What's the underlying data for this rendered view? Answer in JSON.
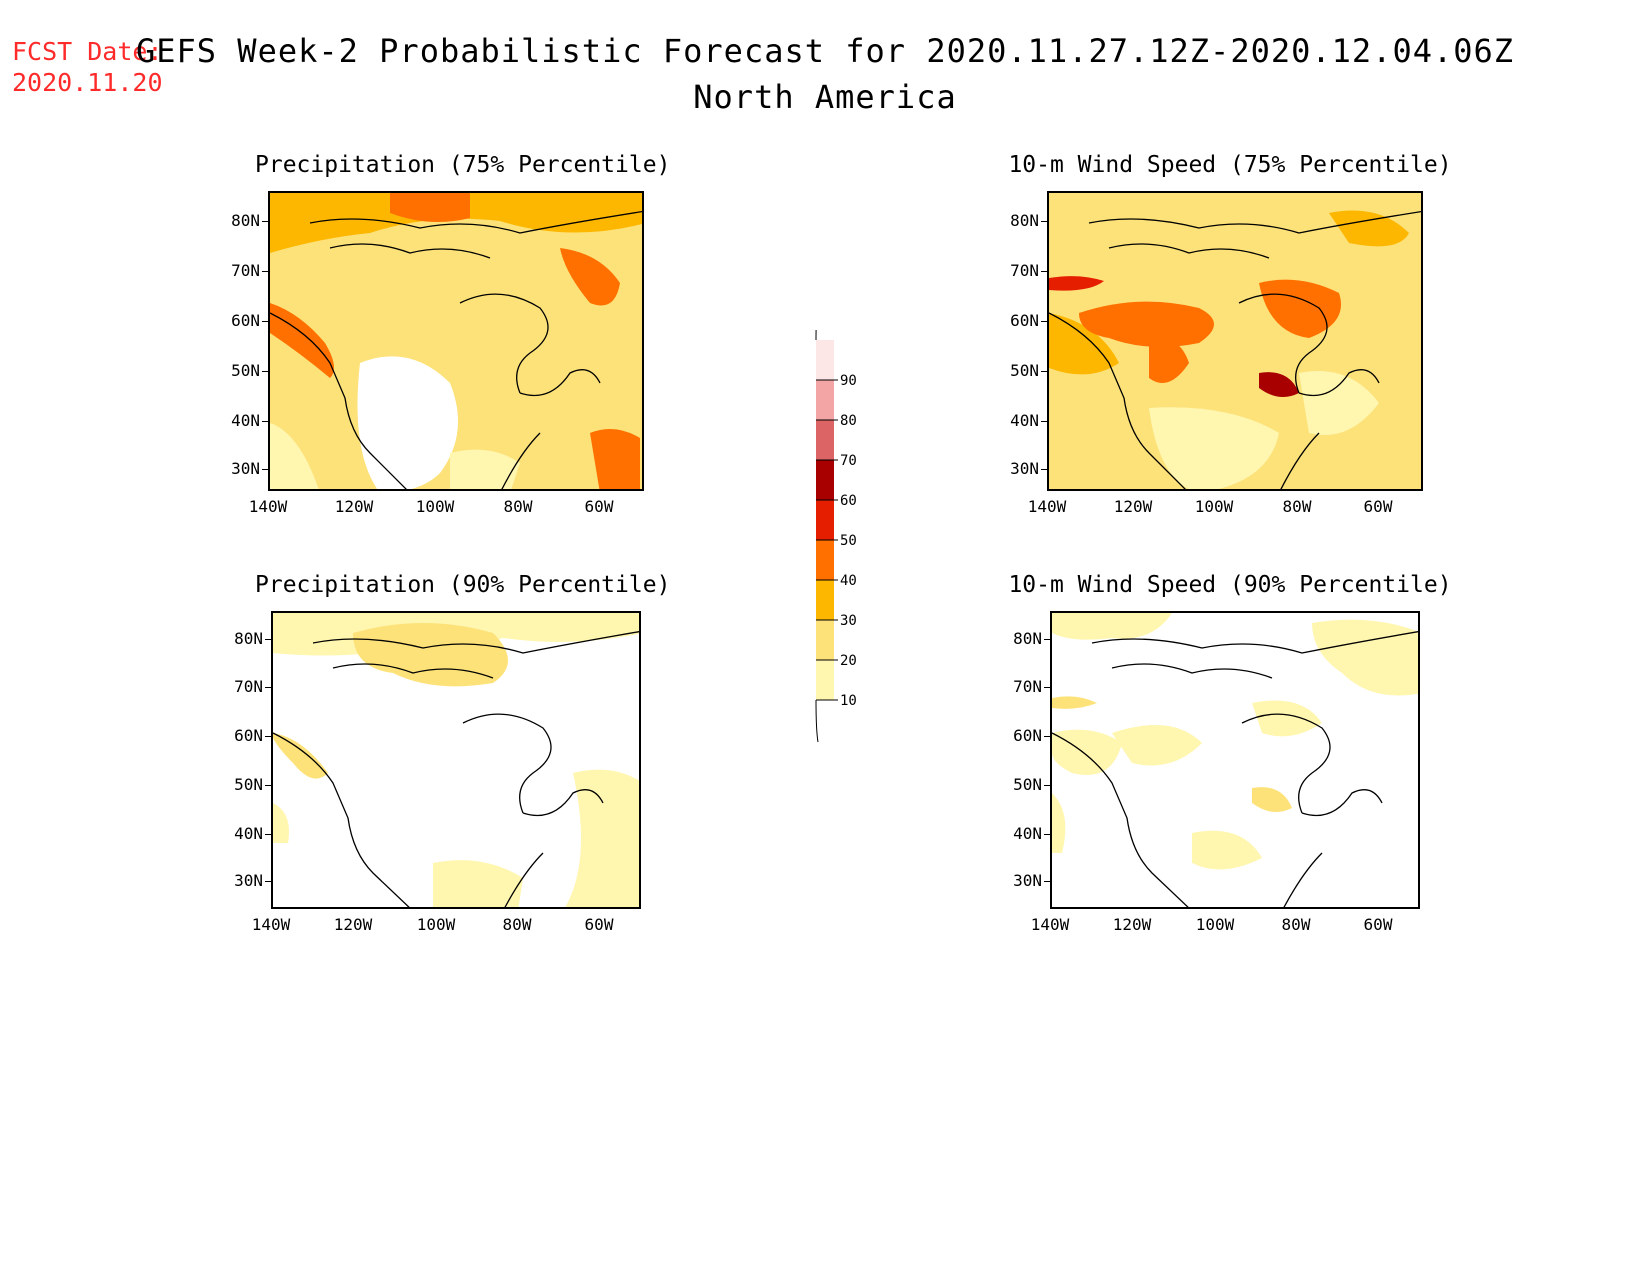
{
  "header": {
    "fcst_line1": "FCST Date:",
    "fcst_line2": "2020.11.20",
    "title": "GEFS Week-2 Probabilistic Forecast for 2020.11.27.12Z-2020.12.04.06Z",
    "subtitle": "North America"
  },
  "axes": {
    "lat_labels": [
      "80N",
      "70N",
      "60N",
      "50N",
      "40N",
      "30N"
    ],
    "lon_labels": [
      "140W",
      "120W",
      "100W",
      "80W",
      "60W"
    ]
  },
  "panels": [
    {
      "id": "p75",
      "title": "Precipitation (75% Percentile)"
    },
    {
      "id": "w75",
      "title": "10-m Wind Speed (75% Percentile)"
    },
    {
      "id": "p90",
      "title": "Precipitation (90% Percentile)"
    },
    {
      "id": "w90",
      "title": "10-m Wind Speed (90% Percentile)"
    }
  ],
  "legend": {
    "levels": [
      "10",
      "20",
      "30",
      "40",
      "50",
      "60",
      "70",
      "80",
      "90"
    ],
    "colors": {
      "c10": "#fff6b0",
      "c20": "#fde27a",
      "c30": "#fdb700",
      "c40": "#ff7000",
      "c50": "#e61e00",
      "c60": "#a80000",
      "c70": "#dd6464",
      "c80": "#f3a4a4",
      "c90": "#fde6e6"
    }
  }
}
